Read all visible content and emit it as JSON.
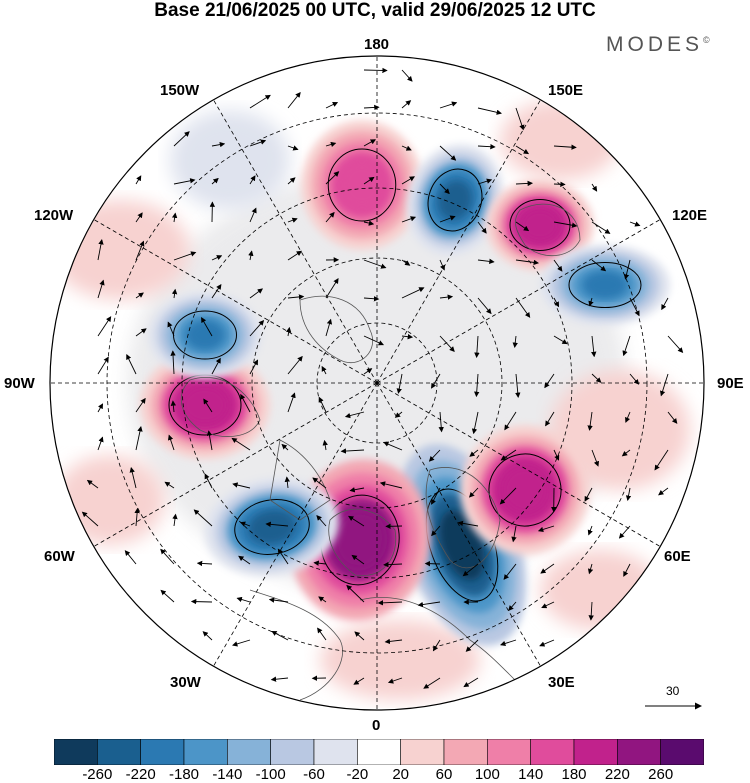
{
  "header": {
    "title": "Base 21/06/2025 00 UTC, valid 29/06/2025 12 UTC",
    "brand": "MODES",
    "brand_mark": "©"
  },
  "map": {
    "projection": "north-polar-stereographic",
    "longitude_labels": {
      "top": "180",
      "bottom": "0",
      "left": "90W",
      "right": "90E",
      "upper_left_1": "150W",
      "upper_left_2": "120W",
      "upper_right_1": "150E",
      "upper_right_2": "120E",
      "lower_left_1": "60W",
      "lower_left_2": "30W",
      "lower_right_1": "60E",
      "lower_right_2": "30E"
    },
    "reference_vector": {
      "label": "30"
    },
    "anomaly_centers": [
      {
        "sign": "negative",
        "region": "Scandinavia / western Russia",
        "level": -260
      },
      {
        "sign": "positive",
        "region": "North Atlantic / Europe west",
        "level": 260
      },
      {
        "sign": "negative",
        "region": "North Atlantic south of Greenland",
        "level": -220
      },
      {
        "sign": "positive",
        "region": "Hudson Bay / Canada",
        "level": 220
      },
      {
        "sign": "negative",
        "region": "Alaska / NE Pacific",
        "level": -180
      },
      {
        "sign": "positive",
        "region": "Bering Sea / North Pacific",
        "level": 180
      },
      {
        "sign": "negative",
        "region": "Kamchatka",
        "level": -220
      },
      {
        "sign": "positive",
        "region": "East Siberia",
        "level": 220
      },
      {
        "sign": "negative",
        "region": "Central Siberia",
        "level": -180
      },
      {
        "sign": "positive",
        "region": "Ural / West Siberia",
        "level": 220
      }
    ]
  },
  "colorbar": {
    "ticks": [
      "-260",
      "-220",
      "-180",
      "-140",
      "-100",
      "-60",
      "-20",
      "20",
      "60",
      "100",
      "140",
      "180",
      "220",
      "260"
    ],
    "colors": [
      "#0f3a5c",
      "#1a5f8f",
      "#2b79b2",
      "#4c95c8",
      "#86b2d8",
      "#b9c8e2",
      "#dfe3ee",
      "#ffffff",
      "#f7d2d0",
      "#f3a8b4",
      "#ef7fa8",
      "#e04c9c",
      "#c1228c",
      "#911580",
      "#5a0b6e"
    ]
  }
}
